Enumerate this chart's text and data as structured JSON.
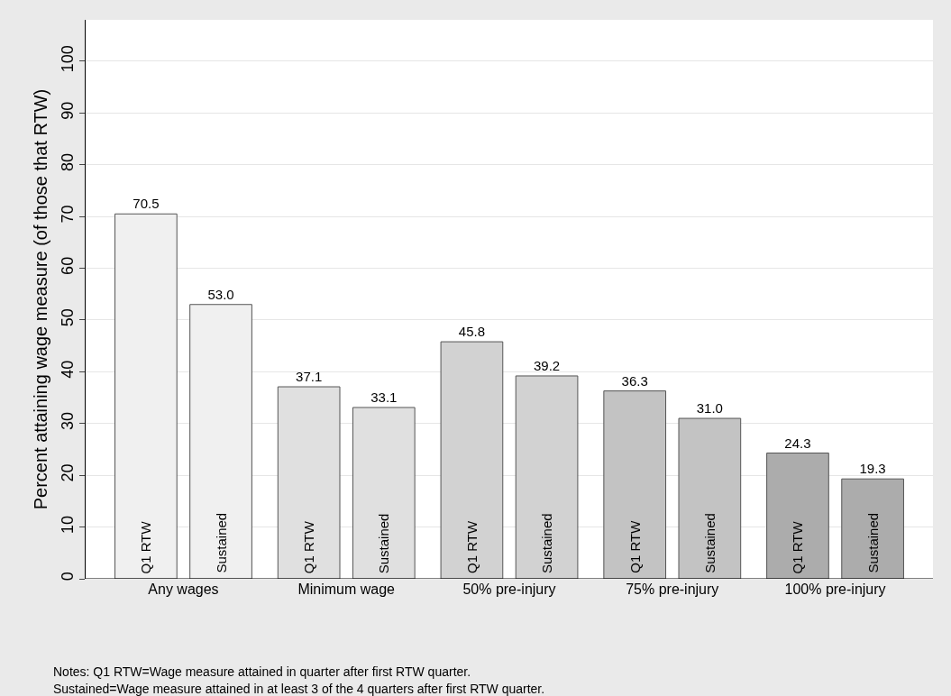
{
  "chart_data": {
    "type": "bar",
    "ylabel": "Percent attaining wage measure (of those that RTW)",
    "categories": [
      "Any wages",
      "Minimum wage",
      "50% pre-injury",
      "75% pre-injury",
      "100% pre-injury"
    ],
    "series": [
      {
        "name": "Q1 RTW",
        "colors": [
          "#f0f0f0",
          "#e0e0e0",
          "#d2d2d2",
          "#c3c3c3",
          "#acacac"
        ],
        "values": [
          70.5,
          37.1,
          45.8,
          36.3,
          24.3
        ],
        "value_labels": [
          "70.5",
          "37.1",
          "45.8",
          "36.3",
          "24.3"
        ]
      },
      {
        "name": "Sustained",
        "colors": [
          "#f0f0f0",
          "#e0e0e0",
          "#d2d2d2",
          "#c3c3c3",
          "#acacac"
        ],
        "values": [
          53.0,
          33.1,
          39.2,
          31.0,
          19.3
        ],
        "value_labels": [
          "53.0",
          "33.1",
          "39.2",
          "31.0",
          "19.3"
        ]
      }
    ],
    "ylim": [
      0,
      108
    ],
    "yticks": [
      0,
      10,
      20,
      30,
      40,
      50,
      60,
      70,
      80,
      90,
      100
    ],
    "grid": "y",
    "annotations": [
      "Notes: Q1 RTW=Wage measure attained in quarter after first RTW quarter.",
      "Sustained=Wage measure attained in at least 3 of the 4 quarters after first RTW quarter."
    ]
  }
}
